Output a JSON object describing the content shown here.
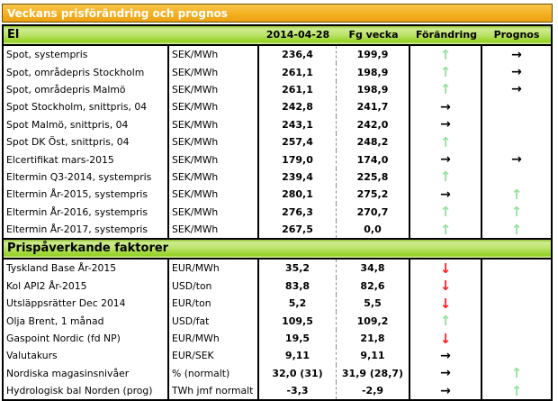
{
  "title": "Veckans prisförändring och prognos",
  "columns": {
    "date": "2014-04-28",
    "prev": "Fg vecka",
    "change": "Förändring",
    "forecast": "Prognos"
  },
  "arrows": {
    "up": "↑",
    "down": "↓",
    "right": "→",
    "none": ""
  },
  "colors": {
    "title_bar_orange": "#F3AE1E",
    "section_bar_green": "#A8D936",
    "up_arrow_green": "#92E298",
    "down_arrow_red": "#FF1D1D",
    "right_arrow_black": "#000000"
  },
  "sections": [
    {
      "name": "El",
      "show_column_headers": true,
      "rows": [
        {
          "label": "Spot, systempris",
          "unit": "SEK/MWh",
          "current": "236,4",
          "prev": "199,9",
          "change": "up",
          "forecast": "right"
        },
        {
          "label": "Spot, områdepris Stockholm",
          "unit": "SEK/MWh",
          "current": "261,1",
          "prev": "198,9",
          "change": "up",
          "forecast": "right"
        },
        {
          "label": "Spot, områdepris Malmö",
          "unit": "SEK/MWh",
          "current": "261,1",
          "prev": "198,9",
          "change": "up",
          "forecast": "right"
        },
        {
          "label": "Spot Stockholm, snittpris,  04",
          "unit": "SEK/MWh",
          "current": "242,8",
          "prev": "241,7",
          "change": "right",
          "forecast": "none"
        },
        {
          "label": "Spot Malmö, snittpris,  04",
          "unit": "SEK/MWh",
          "current": "243,1",
          "prev": "242,0",
          "change": "right",
          "forecast": "none"
        },
        {
          "label": "Spot DK Öst, snittpris,  04",
          "unit": "SEK/MWh",
          "current": "257,4",
          "prev": "248,2",
          "change": "up",
          "forecast": "none"
        },
        {
          "label": "Elcertifikat mars-2015",
          "unit": "SEK/MWh",
          "current": "179,0",
          "prev": "174,0",
          "change": "right",
          "forecast": "right"
        },
        {
          "label": "Eltermin Q3-2014, systempris",
          "unit": "SEK/MWh",
          "current": "239,4",
          "prev": "225,8",
          "change": "up",
          "forecast": "none"
        },
        {
          "label": "Eltermin År-2015, systempris",
          "unit": "SEK/MWh",
          "current": "280,1",
          "prev": "275,2",
          "change": "right",
          "forecast": "up"
        },
        {
          "label": "Eltermin År-2016, systempris",
          "unit": "SEK/MWh",
          "current": "276,3",
          "prev": "270,7",
          "change": "up",
          "forecast": "up"
        },
        {
          "label": "Eltermin År-2017, systempris",
          "unit": "SEK/MWh",
          "current": "267,5",
          "prev": "0,0",
          "change": "up",
          "forecast": "up"
        }
      ]
    },
    {
      "name": "Prispåverkande faktorer",
      "show_column_headers": false,
      "rows": [
        {
          "label": "Tyskland Base År-2015",
          "unit": "EUR/MWh",
          "current": "35,2",
          "prev": "34,8",
          "change": "down",
          "forecast": "none"
        },
        {
          "label": "Kol API2 År-2015",
          "unit": "USD/ton",
          "current": "83,8",
          "prev": "82,6",
          "change": "down",
          "forecast": "none"
        },
        {
          "label": "Utsläppsrätter Dec 2014",
          "unit": "EUR/ton",
          "current": "5,2",
          "prev": "5,5",
          "change": "down",
          "forecast": "none"
        },
        {
          "label": "Olja Brent, 1 månad",
          "unit": "USD/fat",
          "current": "109,5",
          "prev": "109,2",
          "change": "up",
          "forecast": "none"
        },
        {
          "label": "Gaspoint Nordic (fd NP)",
          "unit": "EUR/MWh",
          "current": "19,5",
          "prev": "21,8",
          "change": "down",
          "forecast": "none"
        },
        {
          "label": "Valutakurs",
          "unit": "EUR/SEK",
          "current": "9,11",
          "prev": "9,11",
          "change": "right",
          "forecast": "none"
        },
        {
          "label": "Nordiska magasinsnivåer",
          "unit": "%   (normalt)",
          "current": "32,0 (31)",
          "prev": "31,9 (28,7)",
          "change": "right",
          "forecast": "up"
        },
        {
          "label": "Hydrologisk bal Norden (prog)",
          "unit": "TWh jmf normalt",
          "current": "-3,3",
          "prev": "-2,9",
          "change": "right",
          "forecast": "up"
        }
      ]
    }
  ]
}
